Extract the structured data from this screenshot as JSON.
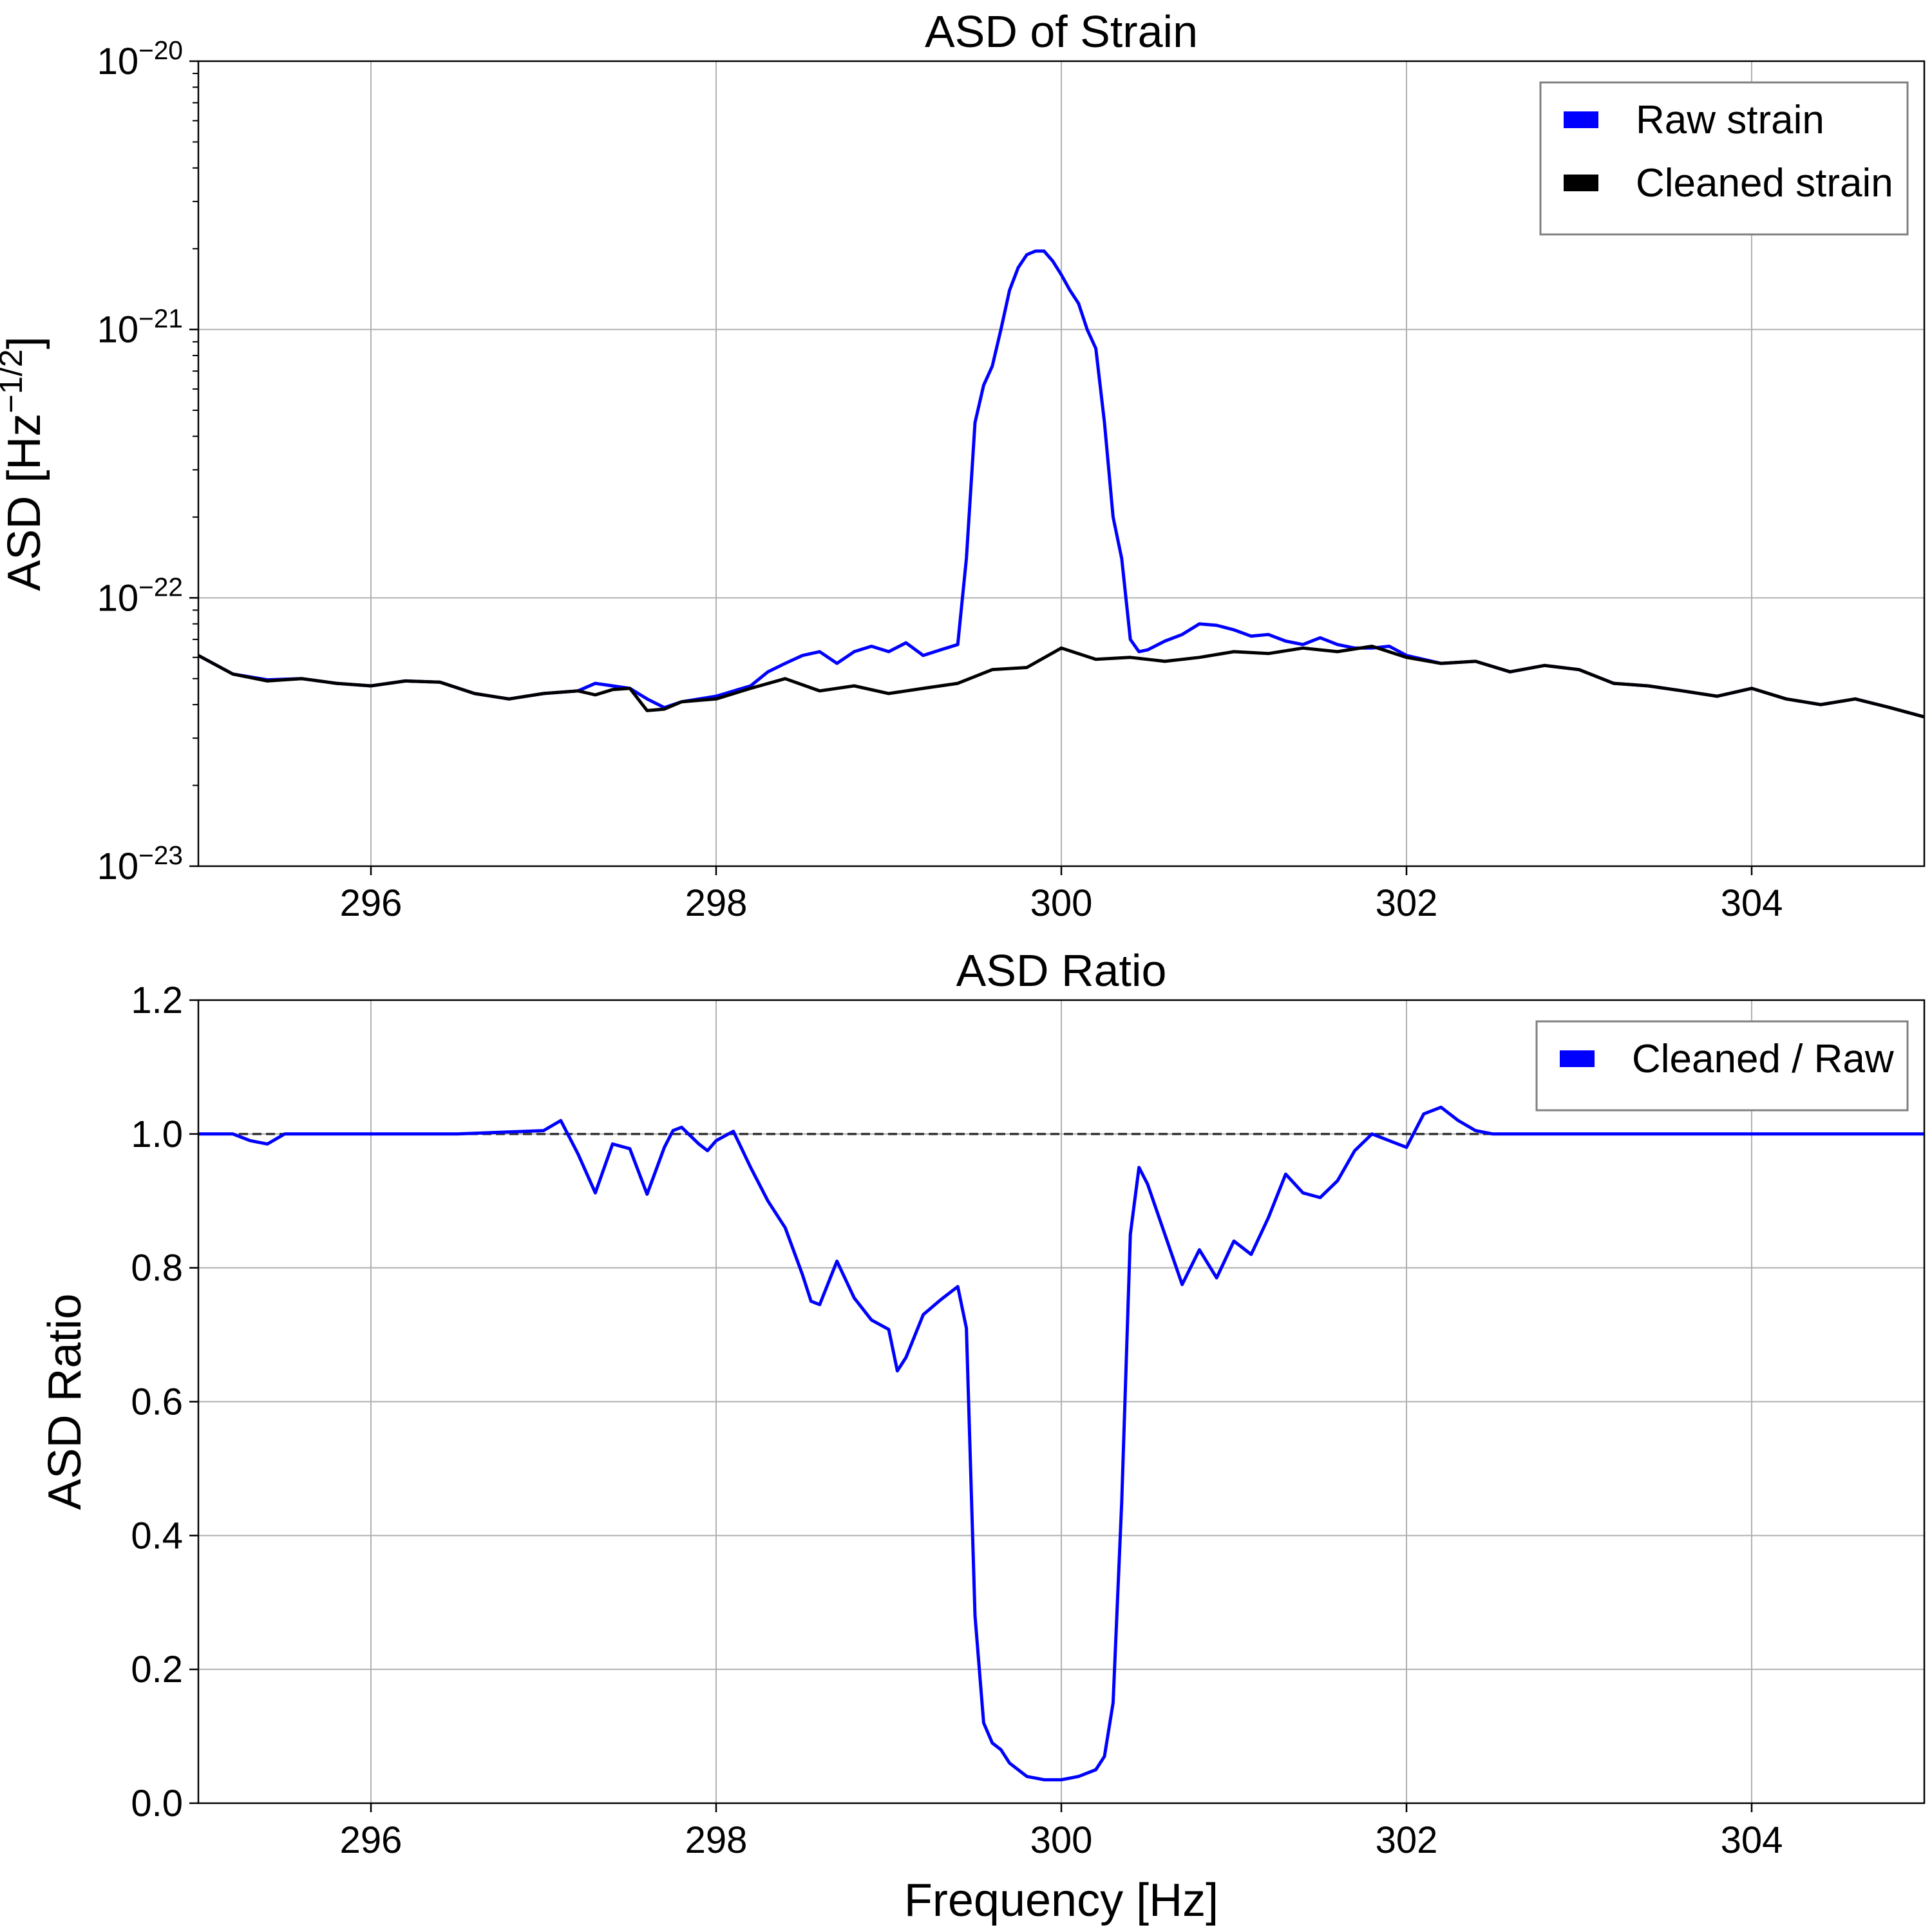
{
  "chart_data": [
    {
      "type": "line",
      "title": "ASD of Strain",
      "xlabel": "Frequency [Hz]",
      "ylabel": "ASD [Hz^-1/2]",
      "ylabel_parts": {
        "base": "ASD [Hz",
        "exponent": "−1/2",
        "close": "]"
      },
      "yscale": "log",
      "xlim": [
        295,
        305
      ],
      "ylim": [
        1e-23,
        1e-20
      ],
      "xticks": [
        296,
        298,
        300,
        302,
        304
      ],
      "xtick_labels": [
        "296",
        "298",
        "300",
        "302",
        "304"
      ],
      "yticks": [
        1e-23,
        1e-22,
        1e-21,
        1e-20
      ],
      "ytick_labels": [
        {
          "base": "10",
          "exp": "−23"
        },
        {
          "base": "10",
          "exp": "−22"
        },
        {
          "base": "10",
          "exp": "−21"
        },
        {
          "base": "10",
          "exp": "−20"
        }
      ],
      "grid": true,
      "legend_position": "top-right",
      "series": [
        {
          "name": "Raw strain",
          "color": "#0000ff",
          "x": [
            295.0,
            295.2,
            295.4,
            295.6,
            295.8,
            296.0,
            296.2,
            296.4,
            296.6,
            296.8,
            297.0,
            297.2,
            297.3,
            297.4,
            297.5,
            297.6,
            297.7,
            297.8,
            298.0,
            298.2,
            298.3,
            298.4,
            298.5,
            298.6,
            298.7,
            298.8,
            298.9,
            299.0,
            299.1,
            299.2,
            299.3,
            299.4,
            299.45,
            299.5,
            299.55,
            299.6,
            299.65,
            299.7,
            299.75,
            299.8,
            299.85,
            299.9,
            299.95,
            300.0,
            300.05,
            300.1,
            300.15,
            300.2,
            300.25,
            300.3,
            300.35,
            300.4,
            300.45,
            300.5,
            300.6,
            300.7,
            300.8,
            300.9,
            301.0,
            301.1,
            301.2,
            301.3,
            301.4,
            301.5,
            301.6,
            301.7,
            301.8,
            301.9,
            302.0,
            302.2,
            302.4,
            302.6,
            302.8,
            303.0,
            303.2,
            303.4,
            303.6,
            303.8,
            304.0,
            304.2,
            304.4,
            304.6,
            304.8,
            305.0
          ],
          "y": [
            6.1e-23,
            5.2e-23,
            4.95e-23,
            5e-23,
            4.8e-23,
            4.7e-23,
            4.9e-23,
            4.85e-23,
            4.4e-23,
            4.2e-23,
            4.4e-23,
            4.5e-23,
            4.8e-23,
            4.7e-23,
            4.6e-23,
            4.2e-23,
            3.9e-23,
            4.1e-23,
            4.3e-23,
            4.7e-23,
            5.3e-23,
            5.7e-23,
            6.1e-23,
            6.3e-23,
            5.7e-23,
            6.3e-23,
            6.6e-23,
            6.3e-23,
            6.8e-23,
            6.1e-23,
            6.4e-23,
            6.7e-23,
            1.4e-22,
            4.5e-22,
            6.2e-22,
            7.3e-22,
            1e-21,
            1.4e-21,
            1.7e-21,
            1.9e-21,
            1.96e-21,
            1.96e-21,
            1.8e-21,
            1.6e-21,
            1.4e-21,
            1.25e-21,
            1e-21,
            8.5e-22,
            4.5e-22,
            2e-22,
            1.4e-22,
            7e-23,
            6.3e-23,
            6.4e-23,
            6.9e-23,
            7.3e-23,
            8e-23,
            7.9e-23,
            7.6e-23,
            7.2e-23,
            7.3e-23,
            6.9e-23,
            6.7e-23,
            7.1e-23,
            6.7e-23,
            6.5e-23,
            6.5e-23,
            6.6e-23,
            6.1e-23,
            5.7e-23,
            5.8e-23,
            5.3e-23,
            5.6e-23,
            5.4e-23,
            4.8e-23,
            4.7e-23,
            4.5e-23,
            4.3e-23,
            4.6e-23,
            4.2e-23,
            4e-23,
            4.2e-23,
            3.9e-23,
            3.6e-23
          ]
        },
        {
          "name": "Cleaned strain",
          "color": "#000000",
          "x": [
            295.0,
            295.2,
            295.4,
            295.6,
            295.8,
            296.0,
            296.2,
            296.4,
            296.6,
            296.8,
            297.0,
            297.2,
            297.3,
            297.4,
            297.5,
            297.6,
            297.7,
            297.8,
            298.0,
            298.2,
            298.4,
            298.6,
            298.8,
            299.0,
            299.2,
            299.4,
            299.6,
            299.8,
            300.0,
            300.2,
            300.4,
            300.6,
            300.8,
            301.0,
            301.2,
            301.4,
            301.6,
            301.8,
            302.0,
            302.2,
            302.4,
            302.6,
            302.8,
            303.0,
            303.2,
            303.4,
            303.6,
            303.8,
            304.0,
            304.2,
            304.4,
            304.6,
            304.8,
            305.0
          ],
          "y": [
            6.1e-23,
            5.2e-23,
            4.9e-23,
            5e-23,
            4.8e-23,
            4.7e-23,
            4.9e-23,
            4.85e-23,
            4.4e-23,
            4.2e-23,
            4.4e-23,
            4.5e-23,
            4.35e-23,
            4.55e-23,
            4.6e-23,
            3.8e-23,
            3.85e-23,
            4.1e-23,
            4.2e-23,
            4.6e-23,
            5e-23,
            4.5e-23,
            4.7e-23,
            4.4e-23,
            4.6e-23,
            4.8e-23,
            5.4e-23,
            5.5e-23,
            6.5e-23,
            5.9e-23,
            6e-23,
            5.8e-23,
            6e-23,
            6.3e-23,
            6.2e-23,
            6.5e-23,
            6.3e-23,
            6.6e-23,
            6e-23,
            5.7e-23,
            5.8e-23,
            5.3e-23,
            5.6e-23,
            5.4e-23,
            4.8e-23,
            4.7e-23,
            4.5e-23,
            4.3e-23,
            4.6e-23,
            4.2e-23,
            4e-23,
            4.2e-23,
            3.9e-23,
            3.6e-23
          ]
        }
      ]
    },
    {
      "type": "line",
      "title": "ASD Ratio",
      "xlabel": "Frequency [Hz]",
      "ylabel": "ASD Ratio",
      "yscale": "linear",
      "xlim": [
        295,
        305
      ],
      "ylim": [
        0.0,
        1.2
      ],
      "xticks": [
        296,
        298,
        300,
        302,
        304
      ],
      "xtick_labels": [
        "296",
        "298",
        "300",
        "302",
        "304"
      ],
      "yticks": [
        0.0,
        0.2,
        0.4,
        0.6,
        0.8,
        1.0,
        1.2
      ],
      "ytick_labels": [
        "0.0",
        "0.2",
        "0.4",
        "0.6",
        "0.8",
        "1.0",
        "1.2"
      ],
      "grid": true,
      "legend_position": "top-right",
      "reference_line": {
        "y": 1.0,
        "style": "dashed",
        "color": "#000000"
      },
      "series": [
        {
          "name": "Cleaned / Raw",
          "color": "#0000ff",
          "x": [
            295.0,
            295.2,
            295.3,
            295.4,
            295.5,
            295.6,
            296.0,
            296.5,
            297.0,
            297.1,
            297.2,
            297.3,
            297.4,
            297.5,
            297.6,
            297.7,
            297.75,
            297.8,
            297.9,
            297.95,
            298.0,
            298.1,
            298.2,
            298.3,
            298.4,
            298.5,
            298.55,
            298.6,
            298.7,
            298.8,
            298.9,
            299.0,
            299.05,
            299.1,
            299.2,
            299.3,
            299.4,
            299.45,
            299.5,
            299.55,
            299.6,
            299.65,
            299.7,
            299.8,
            299.9,
            300.0,
            300.1,
            300.2,
            300.25,
            300.3,
            300.35,
            300.4,
            300.45,
            300.5,
            300.6,
            300.7,
            300.8,
            300.9,
            301.0,
            301.1,
            301.2,
            301.3,
            301.4,
            301.5,
            301.6,
            301.7,
            301.8,
            301.9,
            302.0,
            302.1,
            302.2,
            302.3,
            302.4,
            302.5,
            303.0,
            304.0,
            305.0
          ],
          "y": [
            1.0,
            1.0,
            0.99,
            0.985,
            1.0,
            1.0,
            1.0,
            1.0,
            1.005,
            1.02,
            0.97,
            0.912,
            0.985,
            0.978,
            0.91,
            0.98,
            1.005,
            1.01,
            0.985,
            0.975,
            0.99,
            1.004,
            0.95,
            0.9,
            0.86,
            0.79,
            0.75,
            0.745,
            0.81,
            0.755,
            0.722,
            0.708,
            0.646,
            0.666,
            0.73,
            0.752,
            0.772,
            0.71,
            0.28,
            0.12,
            0.09,
            0.08,
            0.06,
            0.04,
            0.035,
            0.035,
            0.04,
            0.05,
            0.07,
            0.15,
            0.45,
            0.85,
            0.95,
            0.925,
            0.85,
            0.775,
            0.827,
            0.785,
            0.84,
            0.82,
            0.875,
            0.94,
            0.912,
            0.905,
            0.93,
            0.975,
            1.0,
            0.99,
            0.98,
            1.03,
            1.04,
            1.02,
            1.005,
            1.0,
            1.0,
            1.0,
            1.0
          ]
        }
      ]
    }
  ]
}
